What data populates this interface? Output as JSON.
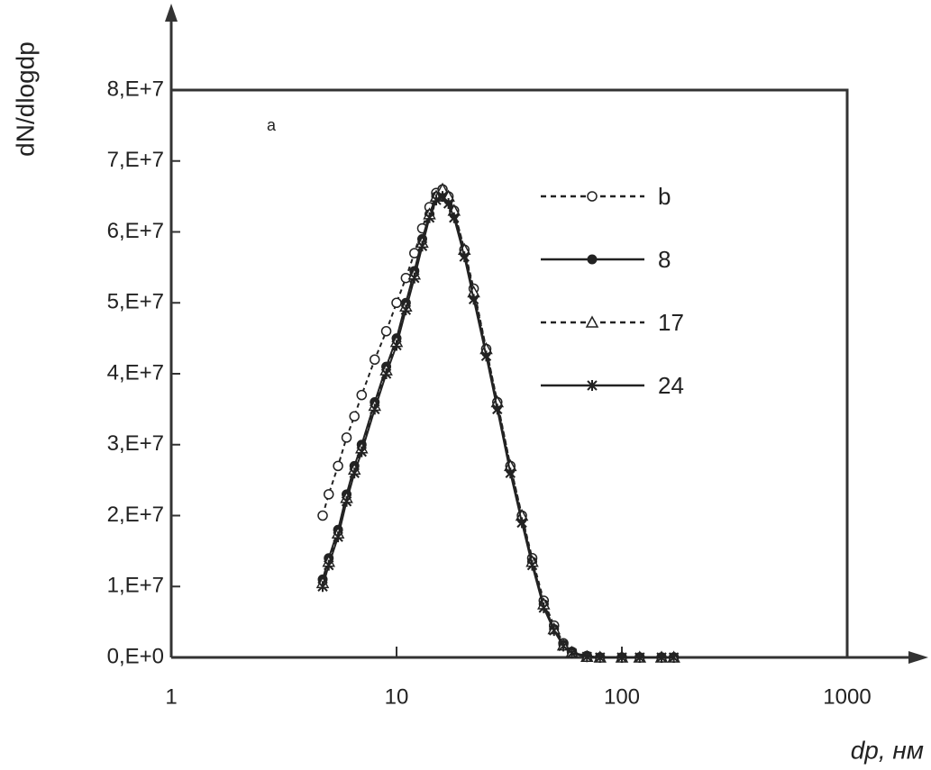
{
  "chart_data": {
    "type": "line",
    "ylabel": "dN/dlogdp",
    "xlabel": "dp, нм",
    "annotation": "a",
    "xscale": "log",
    "xlim": [
      1,
      1000
    ],
    "xticks": [
      1,
      10,
      100,
      1000
    ],
    "ylim": [
      0,
      80000000
    ],
    "yticks": [
      {
        "value": 0,
        "label": "0,E+0"
      },
      {
        "value": 10000000,
        "label": "1,E+7"
      },
      {
        "value": 20000000,
        "label": "2,E+7"
      },
      {
        "value": 30000000,
        "label": "3,E+7"
      },
      {
        "value": 40000000,
        "label": "4,E+7"
      },
      {
        "value": 50000000,
        "label": "5,E+7"
      },
      {
        "value": 60000000,
        "label": "6,E+7"
      },
      {
        "value": 70000000,
        "label": "7,E+7"
      },
      {
        "value": 80000000,
        "label": "8,E+7"
      }
    ],
    "grid": false,
    "legend": "upper right",
    "x": [
      4.7,
      5,
      5.5,
      6,
      6.5,
      7,
      8,
      9,
      10,
      11,
      12,
      13,
      14,
      15,
      16,
      17,
      18,
      20,
      22,
      25,
      28,
      32,
      36,
      40,
      45,
      50,
      55,
      60,
      70,
      80,
      100,
      120,
      150,
      170
    ],
    "series": [
      {
        "name": "b",
        "color": "#222222",
        "line_style": "dashed",
        "marker": "open-circle",
        "values": [
          20000000,
          23000000,
          27000000,
          31000000,
          34000000,
          37000000,
          42000000,
          46000000,
          50000000,
          53500000,
          57000000,
          60500000,
          63500000,
          65500000,
          66000000,
          65000000,
          63000000,
          57500000,
          52000000,
          43500000,
          36000000,
          27000000,
          20000000,
          14000000,
          8000000,
          4500000,
          2000000,
          800000,
          200000,
          0,
          0,
          0,
          0,
          0
        ]
      },
      {
        "name": "8",
        "color": "#222222",
        "line_style": "solid",
        "marker": "filled-circle",
        "values": [
          11000000,
          14000000,
          18000000,
          23000000,
          27000000,
          30000000,
          36000000,
          41000000,
          45000000,
          50000000,
          54500000,
          59000000,
          62500000,
          65000000,
          65500000,
          64500000,
          62500000,
          57000000,
          51000000,
          43000000,
          35500000,
          26500000,
          19500000,
          13500000,
          7500000,
          4000000,
          1800000,
          700000,
          200000,
          0,
          0,
          0,
          0,
          0
        ]
      },
      {
        "name": "17",
        "color": "#222222",
        "line_style": "dashed",
        "marker": "open-triangle",
        "values": [
          10500000,
          13500000,
          17500000,
          22500000,
          26500000,
          29500000,
          35500000,
          40500000,
          44500000,
          49500000,
          54000000,
          58500000,
          62500000,
          65000000,
          66000000,
          65000000,
          63000000,
          57500000,
          51500000,
          43500000,
          36000000,
          27000000,
          20000000,
          13500000,
          7500000,
          4000000,
          1700000,
          700000,
          100000,
          0,
          0,
          0,
          0,
          0
        ]
      },
      {
        "name": "24",
        "color": "#222222",
        "line_style": "solid",
        "marker": "star",
        "values": [
          10000000,
          13000000,
          17000000,
          22000000,
          26000000,
          29000000,
          35000000,
          40000000,
          44000000,
          49000000,
          53500000,
          58000000,
          62000000,
          64500000,
          65000000,
          64000000,
          62000000,
          56500000,
          50500000,
          42500000,
          35000000,
          26000000,
          19000000,
          13000000,
          7000000,
          3800000,
          1600000,
          600000,
          100000,
          0,
          0,
          0,
          0,
          0
        ]
      }
    ]
  }
}
